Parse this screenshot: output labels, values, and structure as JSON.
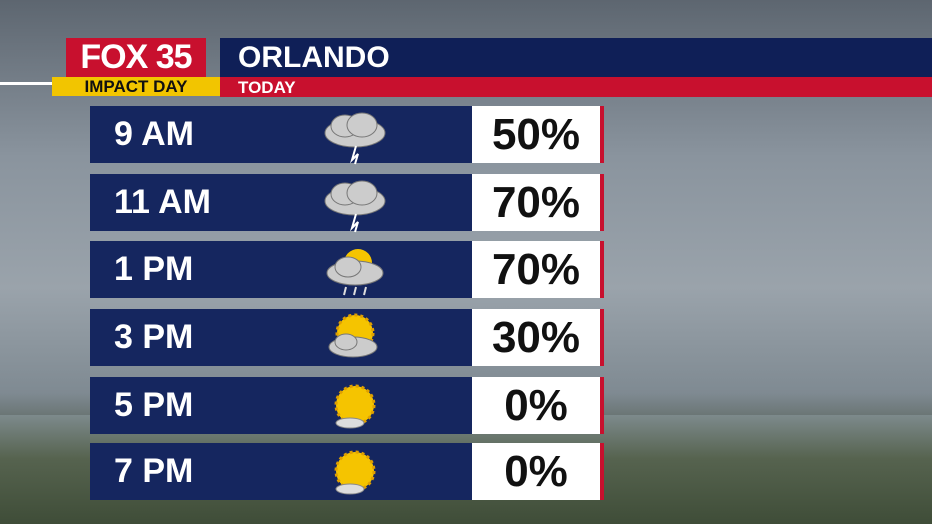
{
  "header": {
    "logo": "FOX 35",
    "badge": "IMPACT DAY",
    "location": "ORLANDO",
    "period": "TODAY"
  },
  "rows": [
    {
      "time": "9 AM",
      "chance": "50%"
    },
    {
      "time": "11 AM",
      "chance": "70%"
    },
    {
      "time": "1 PM",
      "chance": "70%"
    },
    {
      "time": "3 PM",
      "chance": "30%"
    },
    {
      "time": "5 PM",
      "chance": "0%"
    },
    {
      "time": "7 PM",
      "chance": "0%"
    }
  ]
}
